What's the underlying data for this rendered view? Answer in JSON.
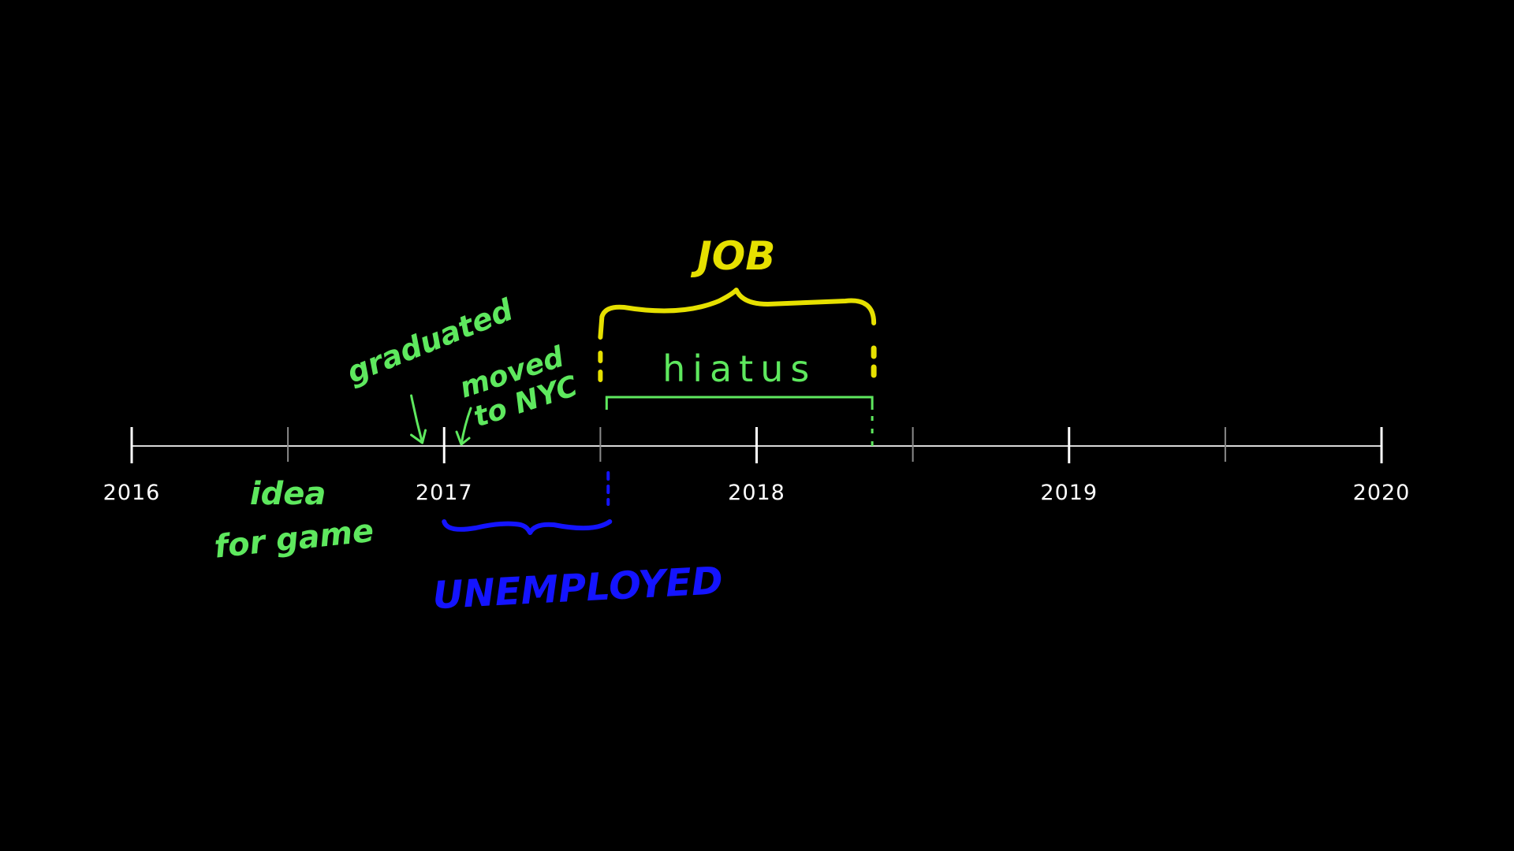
{
  "colors": {
    "background": "#000000",
    "axis": "#d9d9d9",
    "major_tick": "#ffffff",
    "minor_tick": "#8a8a8a",
    "year_text": "#ffffff",
    "annotation_green": "#5ee85e",
    "job_yellow": "#e6e000",
    "unemployed_blue": "#1414ff"
  },
  "timeline": {
    "start_year": 2016,
    "end_year": 2020,
    "years": [
      "2016",
      "2017",
      "2018",
      "2019",
      "2020"
    ],
    "minor_ticks": [
      2016.5,
      2017.5,
      2018.5,
      2019.5
    ]
  },
  "annotations": {
    "idea": {
      "line1": "idea",
      "line2": "for game",
      "at_year": 2016.5
    },
    "graduated": {
      "text": "graduated",
      "at_year": 2016.92
    },
    "moved": {
      "line1": "moved",
      "line2": "to NYC",
      "at_year": 2017.06
    },
    "hiatus": {
      "text": "hiatus",
      "from_year": 2017.52,
      "to_year": 2018.37
    },
    "job": {
      "text": "JOB",
      "from_year": 2017.5,
      "to_year": 2018.37
    },
    "unemployed": {
      "text": "UNEMPLOYED",
      "from_year": 2017.0,
      "to_year": 2017.53
    }
  }
}
